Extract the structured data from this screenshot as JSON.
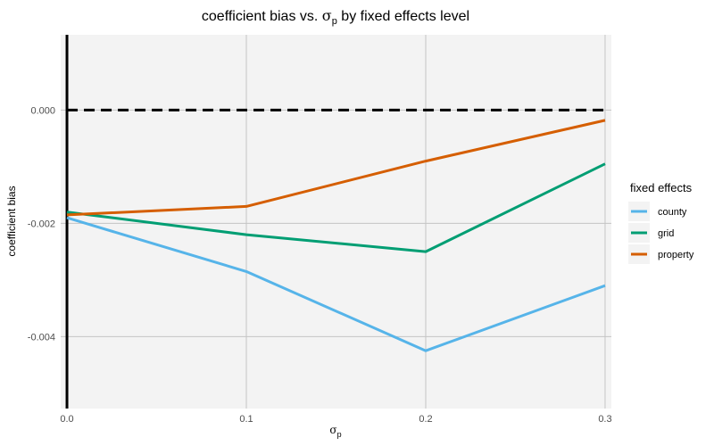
{
  "chart_data": {
    "type": "line",
    "title_prefix": "coefficient bias vs. ",
    "title_symbol": "σ",
    "title_subscript": "p",
    "title_suffix": " by fixed effects level",
    "xlabel_symbol": "σ",
    "xlabel_subscript": "p",
    "ylabel": "coefficient bias",
    "x": [
      0.0,
      0.1,
      0.2,
      0.3
    ],
    "x_tick_labels": [
      "0.0",
      "0.1",
      "0.2",
      "0.3"
    ],
    "xlim": [
      -0.0035,
      0.3035
    ],
    "y_ticks": [
      0.0,
      -0.002,
      -0.004
    ],
    "y_tick_labels": [
      "0.000",
      "-0.002",
      "-0.004"
    ],
    "ylim": [
      -0.00527,
      0.00133
    ],
    "grid": true,
    "reference_hline": {
      "y": 0.0,
      "style": "dashed"
    },
    "reference_vline": {
      "x": 0.0,
      "style": "solid"
    },
    "legend": {
      "title": "fixed effects",
      "position": "right"
    },
    "series": [
      {
        "name": "county",
        "color": "#56B4E9",
        "values": [
          -0.0019,
          -0.00285,
          -0.00425,
          -0.0031
        ]
      },
      {
        "name": "grid",
        "color": "#009E73",
        "values": [
          -0.0018,
          -0.0022,
          -0.0025,
          -0.00095
        ]
      },
      {
        "name": "property",
        "color": "#D55E00",
        "values": [
          -0.00185,
          -0.0017,
          -0.0009,
          -0.00018
        ]
      }
    ]
  }
}
